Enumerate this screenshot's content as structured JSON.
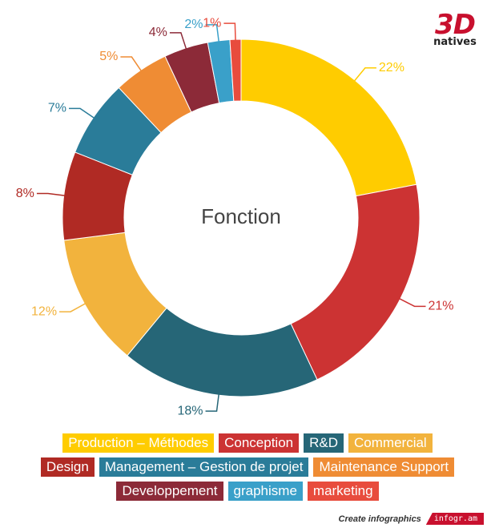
{
  "chart_data": {
    "type": "pie",
    "title": "Fonction",
    "categories": [
      "Production – Méthodes",
      "Conception",
      "R&D",
      "Commercial",
      "Design",
      "Management – Gestion de projet",
      "Maintenance Support",
      "Developpement",
      "graphisme",
      "marketing"
    ],
    "values": [
      22,
      21,
      18,
      12,
      8,
      7,
      5,
      4,
      2,
      1
    ],
    "labels": [
      "22%",
      "21%",
      "18%",
      "12%",
      "8%",
      "7%",
      "5%",
      "4%",
      "2%",
      "1%"
    ],
    "colors": [
      "#ffcc00",
      "#cc3333",
      "#266677",
      "#f2b33d",
      "#b02a24",
      "#2a7c99",
      "#ef8c34",
      "#8c2a38",
      "#3aa0c9",
      "#e84c3d"
    ],
    "legend_position": "bottom"
  },
  "legend_rows": [
    [
      0,
      1,
      2,
      3
    ],
    [
      4,
      5,
      6
    ],
    [
      7,
      8,
      9
    ]
  ],
  "logo": {
    "main": "3D",
    "sub": "natives"
  },
  "footer": {
    "text": "Create infographics",
    "badge": "infogr.am"
  }
}
